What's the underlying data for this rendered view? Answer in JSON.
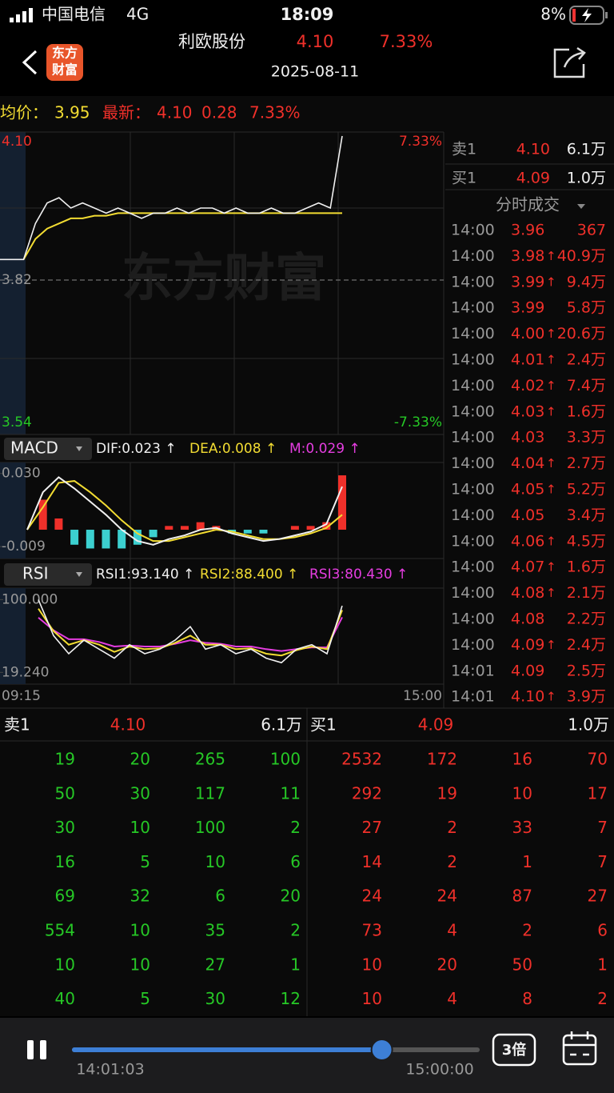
{
  "status_bar": {
    "carrier": "中国电信",
    "network": "4G",
    "time": "18:09",
    "battery": "8%"
  },
  "header": {
    "logo": [
      "东方",
      "财富"
    ],
    "title": "利欧股份",
    "price": "4.10",
    "change_pct": "7.33%",
    "date": "2025-08-11"
  },
  "quote_line": {
    "avg_label": "均价：",
    "avg": "3.95",
    "latest_label": "最新：",
    "latest": "4.10",
    "change": "0.28",
    "change_pct": "7.33%"
  },
  "price_chart": {
    "type": "line",
    "ylim": [
      3.54,
      4.1
    ],
    "yticks": [
      {
        "value": 4.1,
        "label": "4.10"
      },
      3.82,
      3.54
    ],
    "pct_labels": [
      "7.33%",
      "-7.33%"
    ],
    "x_labels": [
      "09:15",
      "15:00"
    ],
    "watermark": "东方财富",
    "price": [
      3.86,
      3.86,
      3.86,
      3.93,
      3.97,
      3.98,
      3.96,
      3.97,
      3.96,
      3.95,
      3.96,
      3.95,
      3.94,
      3.95,
      3.95,
      3.96,
      3.95,
      3.96,
      3.96,
      3.95,
      3.96,
      3.95,
      3.95,
      3.96,
      3.95,
      3.95,
      3.96,
      3.97,
      3.96,
      4.1
    ],
    "avg_price": [
      null,
      null,
      3.86,
      3.9,
      3.92,
      3.93,
      3.94,
      3.94,
      3.945,
      3.945,
      3.95,
      3.95,
      3.95,
      3.95,
      3.95,
      3.95,
      3.95,
      3.95,
      3.95,
      3.95,
      3.95,
      3.95,
      3.95,
      3.95,
      3.95,
      3.95,
      3.95,
      3.95,
      3.95,
      3.95
    ]
  },
  "macd": {
    "type": "bar",
    "label": "MACD",
    "indicators": [
      "DIF:0.023 ↑",
      "DEA:0.008 ↑",
      "M:0.029 ↑"
    ],
    "ylim": [
      -0.0145,
      0.035
    ],
    "yticks": [
      {
        "value": 0.03,
        "label": "0.030"
      },
      -0.009
    ],
    "dif": [
      0.0,
      0.02,
      0.028,
      0.022,
      0.015,
      0.008,
      0.0,
      -0.006,
      -0.008,
      -0.005,
      -0.003,
      0.0,
      0.001,
      -0.002,
      -0.004,
      -0.006,
      -0.005,
      -0.003,
      -0.001,
      0.003,
      0.023
    ],
    "dea": [
      0.0,
      0.012,
      0.025,
      0.026,
      0.02,
      0.013,
      0.005,
      -0.002,
      -0.006,
      -0.006,
      -0.004,
      -0.002,
      0.0,
      -0.001,
      -0.003,
      -0.005,
      -0.005,
      -0.004,
      -0.002,
      0.001,
      0.008
    ],
    "m": [
      0.0,
      0.016,
      0.006,
      -0.008,
      -0.01,
      -0.01,
      -0.01,
      -0.008,
      -0.004,
      0.002,
      0.002,
      0.004,
      0.002,
      -0.002,
      -0.002,
      -0.002,
      0.0,
      0.002,
      0.002,
      0.004,
      0.029
    ]
  },
  "rsi": {
    "type": "line",
    "label": "RSI",
    "indicators": [
      "RSI1:93.140 ↑",
      "RSI2:88.400 ↑",
      "RSI3:80.430 ↑"
    ],
    "ylim": [
      8,
      111
    ],
    "yticks": [
      {
        "value": 100,
        "label": "100.000"
      },
      {
        "value": 19.24,
        "label": "19.240"
      }
    ],
    "rsi1": [
      100,
      60,
      40,
      55,
      45,
      35,
      50,
      40,
      45,
      55,
      70,
      45,
      50,
      40,
      45,
      35,
      30,
      45,
      50,
      40,
      93.14
    ],
    "rsi2": [
      90,
      65,
      50,
      55,
      50,
      42,
      48,
      45,
      46,
      52,
      60,
      50,
      50,
      45,
      46,
      40,
      38,
      44,
      48,
      45,
      88.4
    ],
    "rsi3": [
      80,
      66,
      56,
      56,
      53,
      48,
      49,
      48,
      48,
      51,
      55,
      52,
      51,
      48,
      48,
      45,
      43,
      45,
      47,
      47,
      80.43
    ]
  },
  "side_panel": {
    "ask": [
      "卖1",
      "4.10",
      "6.1万"
    ],
    "bid": [
      "买1",
      "4.09",
      "1.0万"
    ],
    "trades_title": "分时成交",
    "trades": [
      {
        "time": "14:00",
        "price": "3.96",
        "vol": "367"
      },
      {
        "time": "14:00",
        "price": "3.98",
        "dir": "↑",
        "vol": "40.9万"
      },
      {
        "time": "14:00",
        "price": "3.99",
        "dir": "↑",
        "vol": "9.4万"
      },
      {
        "time": "14:00",
        "price": "3.99",
        "vol": "5.8万"
      },
      {
        "time": "14:00",
        "price": "4.00",
        "dir": "↑",
        "vol": "20.6万"
      },
      {
        "time": "14:00",
        "price": "4.01",
        "dir": "↑",
        "vol": "2.4万"
      },
      {
        "time": "14:00",
        "price": "4.02",
        "dir": "↑",
        "vol": "7.4万"
      },
      {
        "time": "14:00",
        "price": "4.03",
        "dir": "↑",
        "vol": "1.6万"
      },
      {
        "time": "14:00",
        "price": "4.03",
        "vol": "3.3万"
      },
      {
        "time": "14:00",
        "price": "4.04",
        "dir": "↑",
        "vol": "2.7万"
      },
      {
        "time": "14:00",
        "price": "4.05",
        "dir": "↑",
        "vol": "5.2万"
      },
      {
        "time": "14:00",
        "price": "4.05",
        "vol": "3.4万"
      },
      {
        "time": "14:00",
        "price": "4.06",
        "dir": "↑",
        "vol": "4.5万"
      },
      {
        "time": "14:00",
        "price": "4.07",
        "dir": "↑",
        "vol": "1.6万"
      },
      {
        "time": "14:00",
        "price": "4.08",
        "dir": "↑",
        "vol": "2.1万"
      },
      {
        "time": "14:00",
        "price": "4.08",
        "vol": "2.2万"
      },
      {
        "time": "14:00",
        "price": "4.09",
        "dir": "↑",
        "vol": "2.4万"
      },
      {
        "time": "14:01",
        "price": "4.09",
        "vol": "2.5万"
      },
      {
        "time": "14:01",
        "price": "4.10",
        "dir": "↑",
        "vol": "3.9万"
      }
    ]
  },
  "order_book": {
    "ask_header": [
      "卖1",
      "4.10",
      "6.1万"
    ],
    "bid_header": [
      "买1",
      "4.09",
      "1.0万"
    ],
    "sell": [
      [
        19,
        20,
        265,
        100
      ],
      [
        50,
        30,
        117,
        11
      ],
      [
        30,
        10,
        100,
        2
      ],
      [
        16,
        5,
        10,
        6
      ],
      [
        69,
        32,
        6,
        20
      ],
      [
        554,
        10,
        35,
        2
      ],
      [
        10,
        10,
        27,
        1
      ],
      [
        40,
        5,
        30,
        12
      ]
    ],
    "buy": [
      [
        2532,
        172,
        16,
        70
      ],
      [
        292,
        19,
        10,
        17
      ],
      [
        27,
        2,
        33,
        7
      ],
      [
        14,
        2,
        1,
        7
      ],
      [
        24,
        24,
        87,
        27
      ],
      [
        73,
        4,
        2,
        6
      ],
      [
        10,
        20,
        50,
        1
      ],
      [
        10,
        4,
        8,
        2
      ]
    ]
  },
  "player": {
    "current": "14:01:03",
    "end": "15:00:00",
    "speed": "3倍",
    "progress": 0.76
  }
}
